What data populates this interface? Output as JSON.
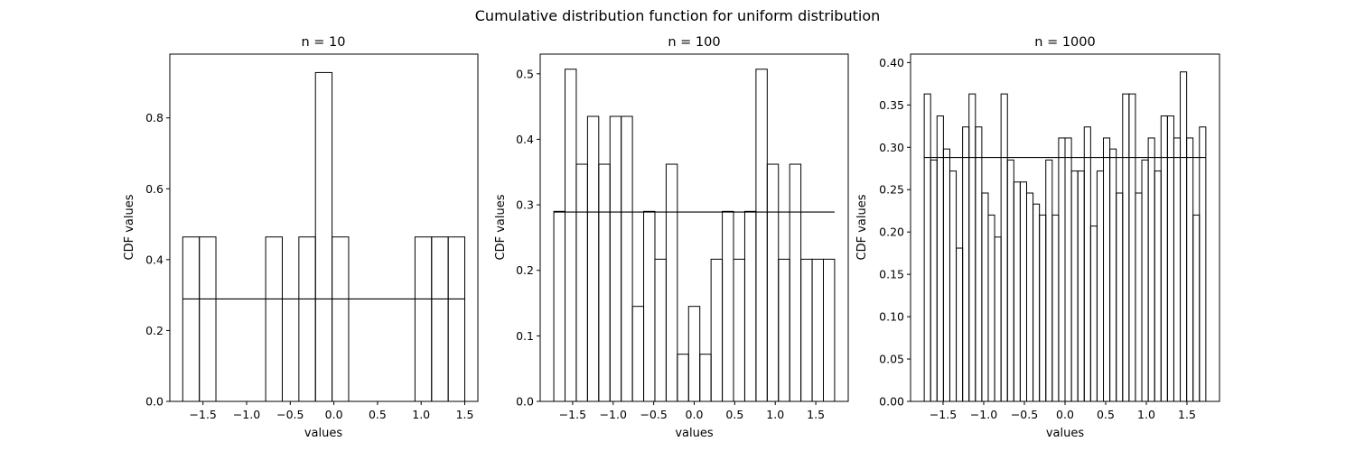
{
  "suptitle": "Cumulative distribution function for uniform distribution",
  "chart_data": [
    {
      "type": "bar",
      "title": "n = 10",
      "xlabel": "values",
      "ylabel": "CDF values",
      "xlim": [
        -1.88,
        1.65
      ],
      "ylim": [
        0,
        0.98
      ],
      "xticks": [
        -1.5,
        -1.0,
        -0.5,
        0.0,
        0.5,
        1.0,
        1.5
      ],
      "xtick_labels": [
        "−1.5",
        "−1.0",
        "−0.5",
        "0.0",
        "0.5",
        "1.0",
        "1.5"
      ],
      "yticks": [
        0.0,
        0.2,
        0.4,
        0.6,
        0.8
      ],
      "ytick_labels": [
        "0.0",
        "0.2",
        "0.4",
        "0.6",
        "0.8"
      ],
      "bin_start": -1.732,
      "bin_end": 1.5,
      "values": [
        0.464,
        0.464,
        0,
        0,
        0,
        0.464,
        0,
        0.464,
        0.928,
        0.464,
        0,
        0,
        0,
        0,
        0.464,
        0.464,
        0.464
      ],
      "reference_line": 0.289
    },
    {
      "type": "bar",
      "title": "n = 100",
      "xlabel": "values",
      "ylabel": "CDF values",
      "xlim": [
        -1.9,
        1.9
      ],
      "ylim": [
        0,
        0.53
      ],
      "xticks": [
        -1.5,
        -1.0,
        -0.5,
        0.0,
        0.5,
        1.0,
        1.5
      ],
      "xtick_labels": [
        "−1.5",
        "−1.0",
        "−0.5",
        "0.0",
        "0.5",
        "1.0",
        "1.5"
      ],
      "yticks": [
        0.0,
        0.1,
        0.2,
        0.3,
        0.4,
        0.5
      ],
      "ytick_labels": [
        "0.0",
        "0.1",
        "0.2",
        "0.3",
        "0.4",
        "0.5"
      ],
      "bin_start": -1.732,
      "bin_end": 1.732,
      "values": [
        0.29,
        0.507,
        0.362,
        0.435,
        0.362,
        0.435,
        0.435,
        0.145,
        0.29,
        0.217,
        0.362,
        0.072,
        0.145,
        0.072,
        0.217,
        0.29,
        0.217,
        0.29,
        0.507,
        0.362,
        0.217,
        0.362,
        0.217,
        0.217,
        0.217
      ],
      "reference_line": 0.289
    },
    {
      "type": "bar",
      "title": "n = 1000",
      "xlabel": "values",
      "ylabel": "CDF values",
      "xlim": [
        -1.9,
        1.9
      ],
      "ylim": [
        0,
        0.41
      ],
      "xticks": [
        -1.5,
        -1.0,
        -0.5,
        0.0,
        0.5,
        1.0,
        1.5
      ],
      "xtick_labels": [
        "−1.5",
        "−1.0",
        "−0.5",
        "0.0",
        "0.5",
        "1.0",
        "1.5"
      ],
      "yticks": [
        0.0,
        0.05,
        0.1,
        0.15,
        0.2,
        0.25,
        0.3,
        0.35,
        0.4
      ],
      "ytick_labels": [
        "0.00",
        "0.05",
        "0.10",
        "0.15",
        "0.20",
        "0.25",
        "0.30",
        "0.35",
        "0.40"
      ],
      "bin_start": -1.732,
      "bin_end": 1.732,
      "values": [
        0.363,
        0.285,
        0.337,
        0.298,
        0.272,
        0.181,
        0.324,
        0.363,
        0.324,
        0.246,
        0.22,
        0.194,
        0.363,
        0.285,
        0.259,
        0.259,
        0.246,
        0.233,
        0.22,
        0.285,
        0.22,
        0.311,
        0.311,
        0.272,
        0.272,
        0.324,
        0.207,
        0.272,
        0.311,
        0.298,
        0.246,
        0.363,
        0.363,
        0.246,
        0.285,
        0.311,
        0.272,
        0.337,
        0.337,
        0.311,
        0.389,
        0.311,
        0.22,
        0.324
      ],
      "reference_line": 0.288
    }
  ]
}
